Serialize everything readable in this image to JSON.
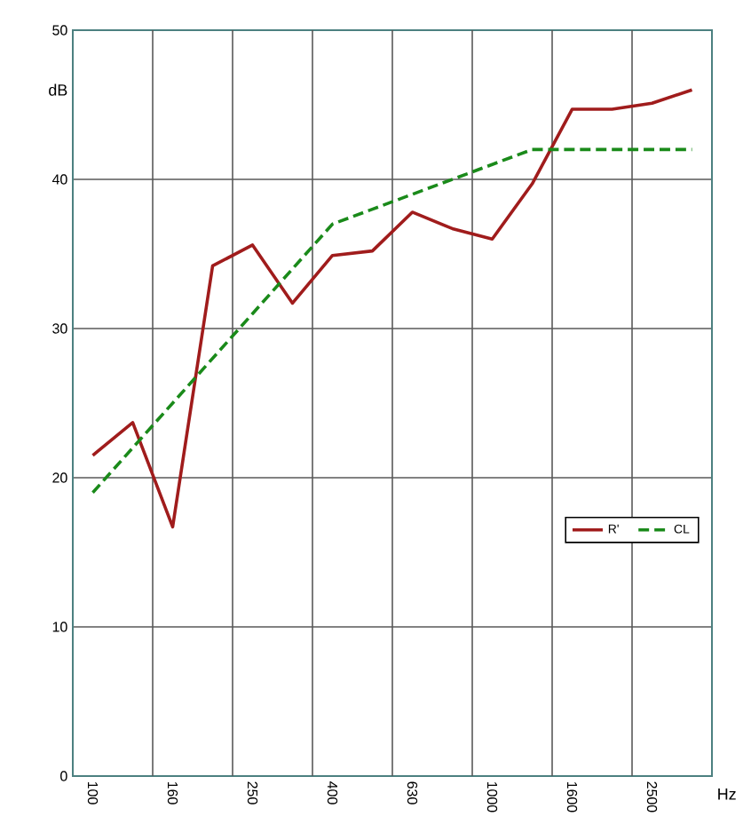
{
  "chart_data": {
    "type": "line",
    "xlabel": "Hz",
    "ylabel": "dB",
    "categories": [
      "100",
      null,
      "160",
      null,
      "250",
      null,
      "400",
      null,
      "630",
      null,
      "1000",
      null,
      "1600",
      null,
      "2500",
      null
    ],
    "series": [
      {
        "name": "R'",
        "color": "#a01c1c",
        "line_style": "solid",
        "values": [
          21.5,
          23.7,
          16.7,
          34.2,
          35.6,
          31.7,
          34.9,
          35.2,
          37.8,
          36.7,
          36.0,
          39.7,
          44.7,
          44.7,
          45.1,
          46.0
        ]
      },
      {
        "name": "CL",
        "color": "#1a8a1a",
        "line_style": "dashed",
        "values": [
          19,
          22,
          25,
          28,
          31,
          34,
          37,
          38,
          39,
          40,
          41,
          42,
          42,
          42,
          42,
          42
        ]
      }
    ],
    "ylim": [
      0,
      50
    ],
    "yticks": [
      0,
      10,
      20,
      30,
      40,
      50
    ],
    "grid": true,
    "legend": "right",
    "marker": "none"
  }
}
